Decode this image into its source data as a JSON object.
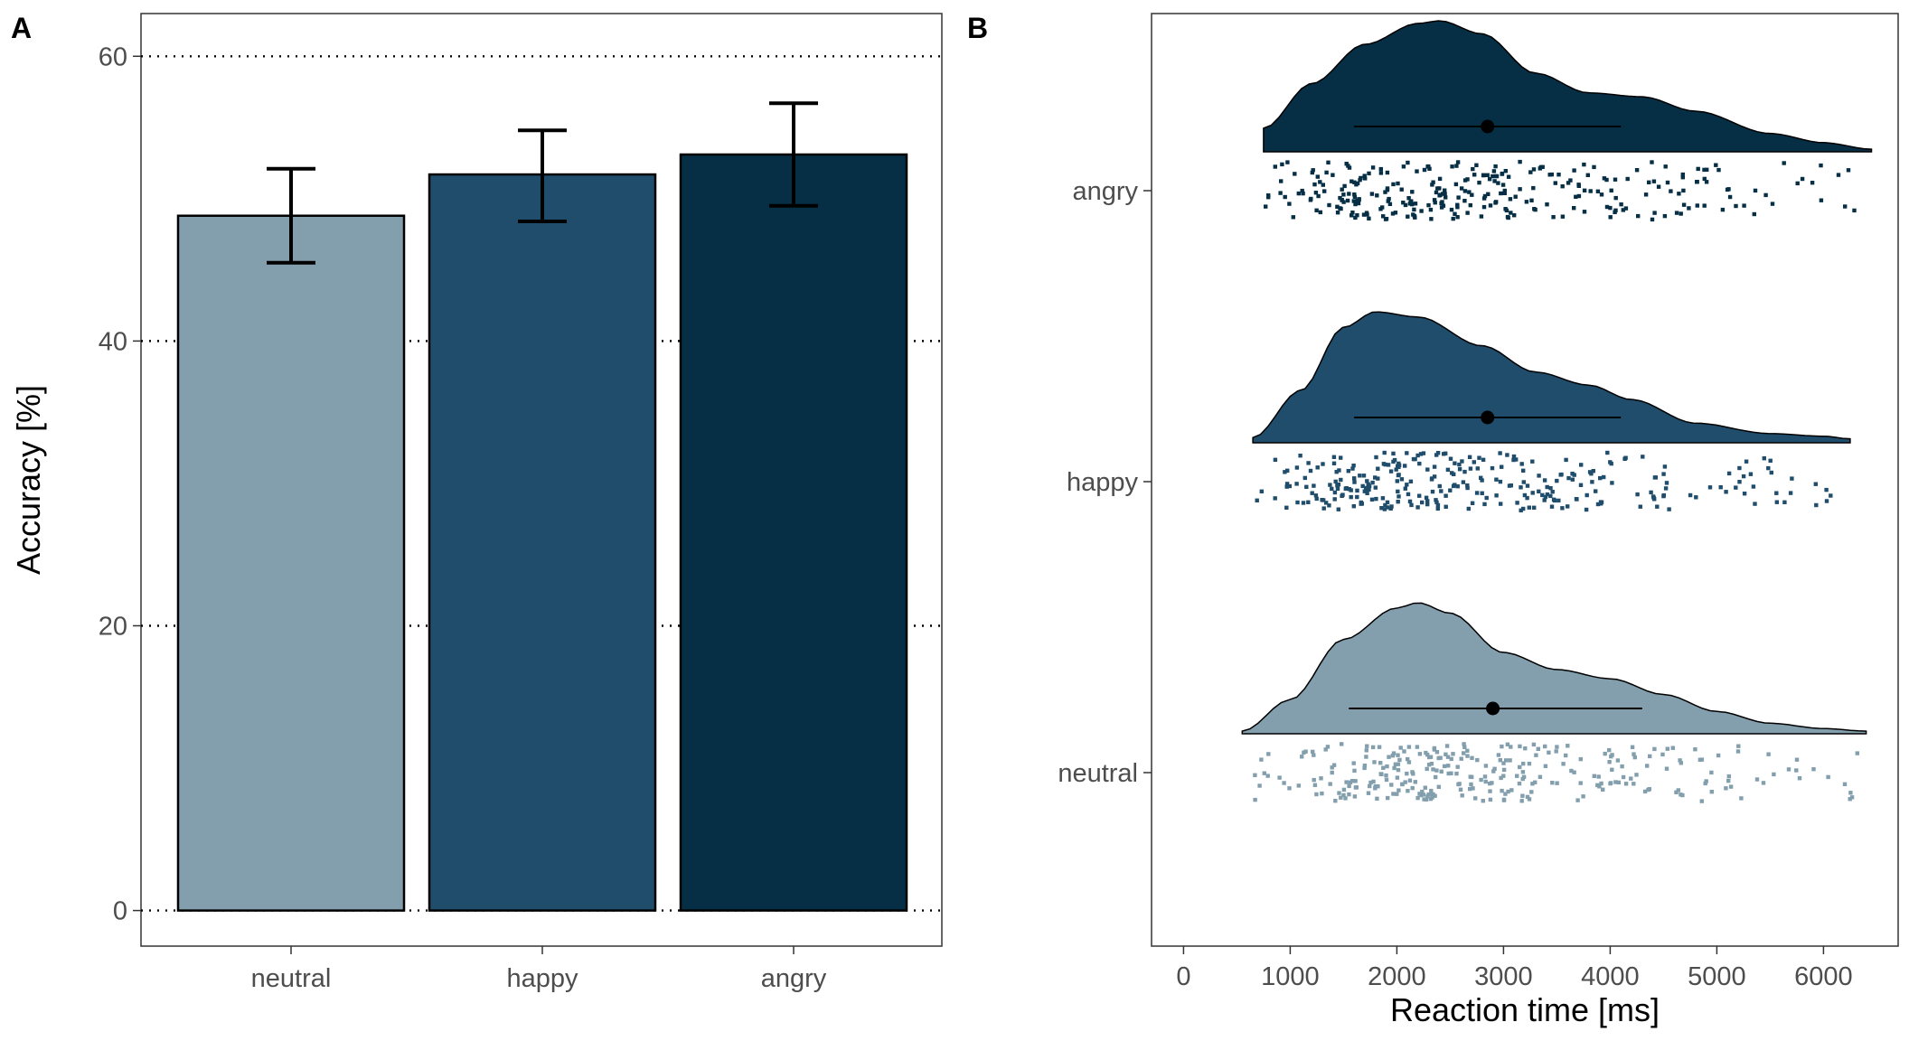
{
  "chart_data": [
    {
      "panel": "A",
      "type": "bar",
      "categories": [
        "neutral",
        "happy",
        "angry"
      ],
      "values": [
        48.8,
        51.7,
        53.1
      ],
      "error_low": [
        45.5,
        48.4,
        49.5
      ],
      "error_high": [
        52.1,
        54.8,
        56.7
      ],
      "colors": [
        "#839fad",
        "#1f4d6b",
        "#062f45"
      ],
      "ylabel": "Accuracy [%]",
      "xlabel": "",
      "ylim": [
        -2.5,
        63
      ],
      "yticks": [
        "0",
        "20",
        "40",
        "60"
      ],
      "reference_line": 60,
      "grid": "dotted horizontal at 0, 20, 40"
    },
    {
      "panel": "B",
      "type": "raincloud",
      "categories": [
        "neutral",
        "happy",
        "angry"
      ],
      "colors": [
        "#839fad",
        "#1f4d6b",
        "#062f45"
      ],
      "xlabel": "Reaction time [ms]",
      "ylabel": "",
      "xlim": [
        -300,
        6700
      ],
      "xticks": [
        "0",
        "1000",
        "2000",
        "3000",
        "4000",
        "5000",
        "6000"
      ],
      "series": [
        {
          "name": "neutral",
          "min": 550,
          "max": 6400,
          "center": 2900,
          "interval": [
            1550,
            4300
          ],
          "density": [
            [
              550,
              0.02
            ],
            [
              1000,
              0.26
            ],
            [
              1500,
              0.72
            ],
            [
              2000,
              0.96
            ],
            [
              2200,
              1.0
            ],
            [
              2500,
              0.92
            ],
            [
              3000,
              0.62
            ],
            [
              3500,
              0.49
            ],
            [
              4000,
              0.42
            ],
            [
              4500,
              0.3
            ],
            [
              5000,
              0.17
            ],
            [
              5500,
              0.08
            ],
            [
              6000,
              0.04
            ],
            [
              6400,
              0.02
            ]
          ],
          "points_count": 300
        },
        {
          "name": "happy",
          "min": 650,
          "max": 6250,
          "center": 2850,
          "interval": [
            1600,
            4100
          ],
          "density": [
            [
              650,
              0.04
            ],
            [
              1100,
              0.4
            ],
            [
              1500,
              0.88
            ],
            [
              1800,
              1.0
            ],
            [
              2200,
              0.96
            ],
            [
              2800,
              0.74
            ],
            [
              3300,
              0.54
            ],
            [
              3800,
              0.44
            ],
            [
              4200,
              0.33
            ],
            [
              4800,
              0.15
            ],
            [
              5500,
              0.07
            ],
            [
              6000,
              0.05
            ],
            [
              6250,
              0.03
            ]
          ],
          "points_count": 300
        },
        {
          "name": "angry",
          "min": 750,
          "max": 6450,
          "center": 2850,
          "interval": [
            1600,
            4100
          ],
          "density": [
            [
              750,
              0.18
            ],
            [
              1200,
              0.52
            ],
            [
              1700,
              0.82
            ],
            [
              2200,
              0.98
            ],
            [
              2400,
              1.0
            ],
            [
              2800,
              0.9
            ],
            [
              3300,
              0.6
            ],
            [
              3800,
              0.45
            ],
            [
              4300,
              0.42
            ],
            [
              4800,
              0.31
            ],
            [
              5500,
              0.14
            ],
            [
              6000,
              0.07
            ],
            [
              6450,
              0.02
            ]
          ],
          "points_count": 300
        }
      ]
    }
  ]
}
